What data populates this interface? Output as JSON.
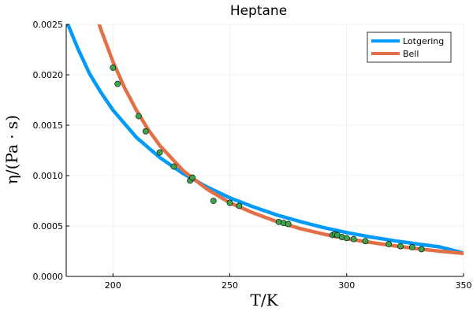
{
  "chart_data": {
    "type": "line",
    "title": "Heptane",
    "xlabel": "T/K",
    "ylabel": "η/(Pa · s)",
    "xlim": [
      180,
      350
    ],
    "ylim": [
      0,
      0.0025
    ],
    "xticks": [
      200,
      250,
      300,
      350
    ],
    "yticks": [
      0.0,
      0.0005,
      0.001,
      0.0015,
      0.002,
      0.0025
    ],
    "xtick_labels": [
      "200",
      "250",
      "300",
      "350"
    ],
    "ytick_labels": [
      "0.0000",
      "0.0005",
      "0.0010",
      "0.0015",
      "0.0020",
      "0.0025"
    ],
    "grid": true,
    "legend_position": "top-right",
    "series": [
      {
        "name": "Lotgering",
        "kind": "line",
        "color": "#009af9",
        "x": [
          180,
          185,
          190,
          195,
          200,
          210,
          220,
          230,
          240,
          250,
          260,
          270,
          280,
          290,
          300,
          310,
          320,
          330,
          340,
          350
        ],
        "y": [
          0.00254,
          0.00226,
          0.00201,
          0.00182,
          0.00165,
          0.00138,
          0.00118,
          0.00102,
          0.00089,
          0.00078,
          0.00069,
          0.00061,
          0.000545,
          0.000485,
          0.000435,
          0.000392,
          0.000355,
          0.000322,
          0.000292,
          0.000232
        ]
      },
      {
        "name": "Bell",
        "kind": "line",
        "color": "#e26f46",
        "x": [
          190,
          195,
          200,
          205,
          210,
          215,
          220,
          230,
          240,
          250,
          260,
          270,
          280,
          290,
          300,
          310,
          320,
          330,
          340,
          350
        ],
        "y": [
          0.00278,
          0.00244,
          0.00213,
          0.00187,
          0.00165,
          0.00146,
          0.0013,
          0.00105,
          0.00087,
          0.00073,
          0.00063,
          0.000545,
          0.000475,
          0.00042,
          0.000375,
          0.000338,
          0.000305,
          0.000275,
          0.00025,
          0.000228
        ]
      },
      {
        "name": "",
        "kind": "scatter",
        "color": "#3da44d",
        "x": [
          200,
          202,
          211,
          214,
          220,
          226,
          233,
          234,
          243,
          250,
          254,
          271,
          273,
          275,
          294,
          295,
          296,
          298,
          300,
          303,
          308,
          318,
          323,
          328,
          332
        ],
        "y": [
          0.00207,
          0.00191,
          0.00159,
          0.00144,
          0.00123,
          0.00109,
          0.00095,
          0.00098,
          0.00075,
          0.00073,
          0.0007,
          0.00054,
          0.00053,
          0.00052,
          0.00041,
          0.00042,
          0.00041,
          0.00039,
          0.00038,
          0.00037,
          0.00035,
          0.00032,
          0.0003,
          0.00029,
          0.00027
        ]
      }
    ]
  }
}
